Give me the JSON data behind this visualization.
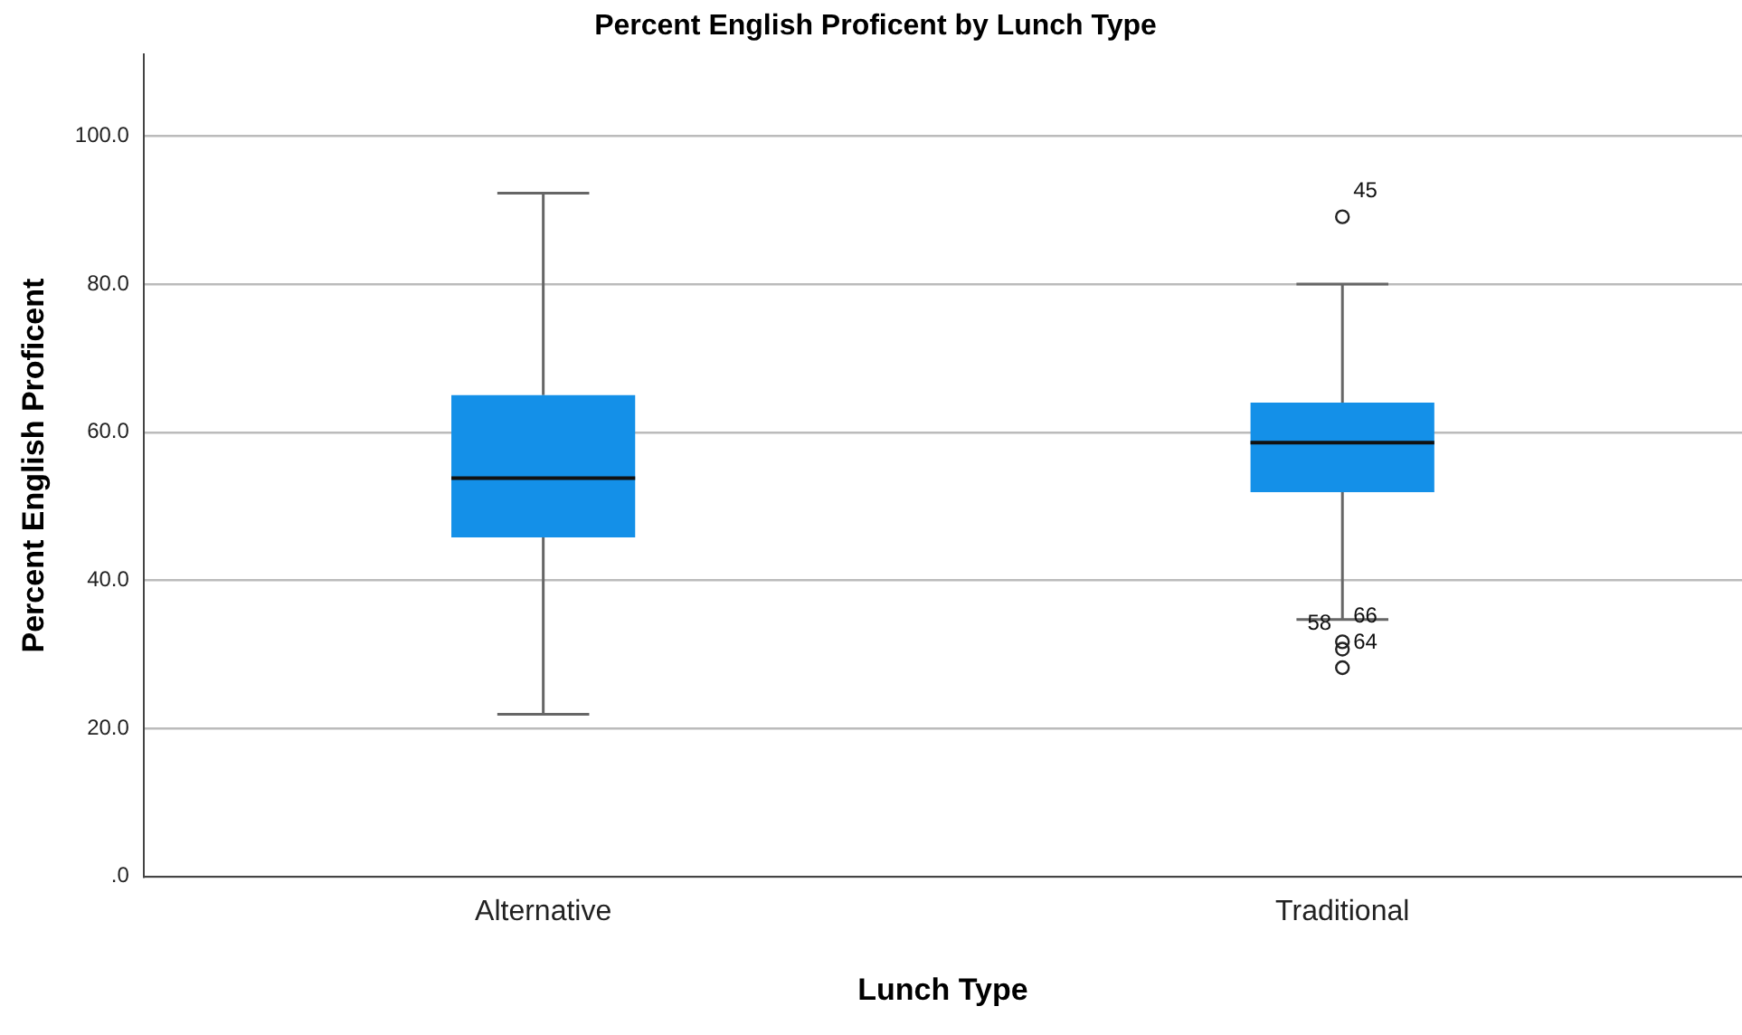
{
  "chart_data": {
    "type": "box",
    "title": "Percent English Proficent by Lunch Type",
    "xlabel": "Lunch Type",
    "ylabel": "Percent English Proficent",
    "categories": [
      "Alternative",
      "Traditional"
    ],
    "color": "#1490e8",
    "boxes": [
      {
        "low": 21.9,
        "q1": 45.8,
        "median": 53.8,
        "q3": 65.0,
        "high": 92.3
      },
      {
        "low": 34.7,
        "q1": 51.9,
        "median": 58.6,
        "q3": 64.0,
        "high": 80.0,
        "outliers": [
          89.1,
          31.7,
          30.7,
          28.2
        ]
      }
    ],
    "ylim": [
      0,
      111
    ],
    "yticks": [
      {
        "value": 0,
        "label": ".0"
      },
      {
        "value": 20,
        "label": "20.0"
      },
      {
        "value": 40,
        "label": "40.0"
      },
      {
        "value": 60,
        "label": "60.0"
      },
      {
        "value": 80,
        "label": "80.0"
      },
      {
        "value": 100,
        "label": "100.0"
      }
    ],
    "grid": "y",
    "annotations": [
      "45",
      "66",
      "58",
      "64"
    ]
  }
}
